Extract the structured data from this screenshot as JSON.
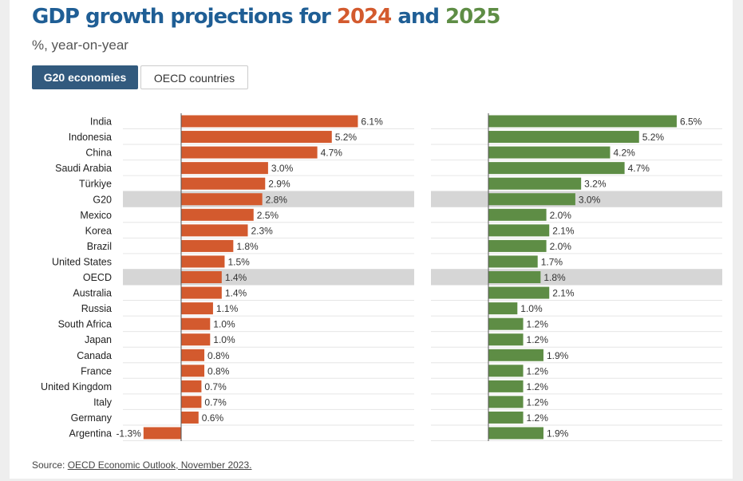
{
  "header": {
    "title_prefix": "GDP growth projections for ",
    "year_a": "2024",
    "title_middle": " and ",
    "year_b": "2025",
    "subtitle": "%, year-on-year"
  },
  "toggle": {
    "g20_label": "G20 economies",
    "oecd_label": "OECD countries",
    "selected": "G20 economies"
  },
  "colors": {
    "title": "#1f5e95",
    "bar_2024": "#d35a2e",
    "bar_2025": "#5e8d45",
    "highlight_row": "#d6d6d6",
    "toggle_active": "#325a7e"
  },
  "chart_data": {
    "type": "bar",
    "orientation": "horizontal",
    "categories": [
      "India",
      "Indonesia",
      "China",
      "Saudi Arabia",
      "Türkiye",
      "G20",
      "Mexico",
      "Korea",
      "Brazil",
      "United States",
      "OECD",
      "Australia",
      "Russia",
      "South Africa",
      "Japan",
      "Canada",
      "France",
      "United Kingdom",
      "Italy",
      "Germany",
      "Argentina"
    ],
    "highlighted": [
      "G20",
      "OECD"
    ],
    "series": [
      {
        "name": "2024",
        "values": [
          6.1,
          5.2,
          4.7,
          3.0,
          2.9,
          2.8,
          2.5,
          2.3,
          1.8,
          1.5,
          1.4,
          1.4,
          1.1,
          1.0,
          1.0,
          0.8,
          0.8,
          0.7,
          0.7,
          0.6,
          -1.3
        ],
        "labels": [
          "6.1%",
          "5.2%",
          "4.7%",
          "3.0%",
          "2.9%",
          "2.8%",
          "2.5%",
          "2.3%",
          "1.8%",
          "1.5%",
          "1.4%",
          "1.4%",
          "1.1%",
          "1.0%",
          "1.0%",
          "0.8%",
          "0.8%",
          "0.7%",
          "0.7%",
          "0.6%",
          "-1.3%"
        ]
      },
      {
        "name": "2025",
        "values": [
          6.5,
          5.2,
          4.2,
          4.7,
          3.2,
          3.0,
          2.0,
          2.1,
          2.0,
          1.7,
          1.8,
          2.1,
          1.0,
          1.2,
          1.2,
          1.9,
          1.2,
          1.2,
          1.2,
          1.2,
          1.9
        ],
        "labels": [
          "6.5%",
          "5.2%",
          "4.2%",
          "4.7%",
          "3.2%",
          "3.0%",
          "2.0%",
          "2.1%",
          "2.0%",
          "1.7%",
          "1.8%",
          "2.1%",
          "1.0%",
          "1.2%",
          "1.2%",
          "1.9%",
          "1.2%",
          "1.2%",
          "1.2%",
          "1.2%",
          "1.9%"
        ]
      }
    ],
    "grid": true
  },
  "source": {
    "prefix": "Source: ",
    "link_text": "OECD Economic Outlook, November 2023."
  }
}
